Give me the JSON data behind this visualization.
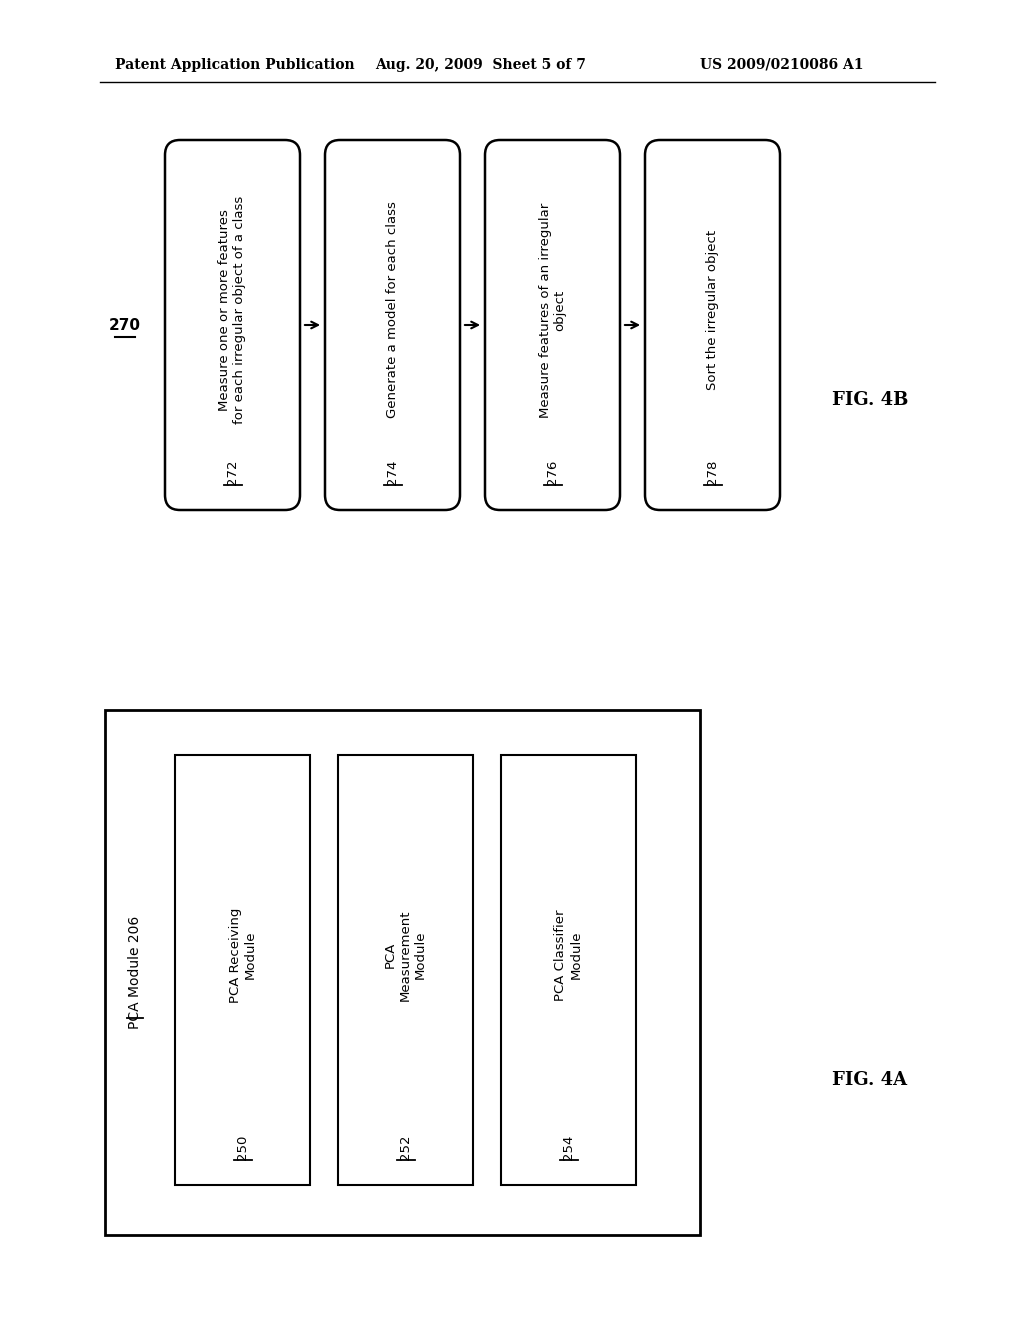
{
  "bg_color": "#ffffff",
  "header_left": "Patent Application Publication",
  "header_center": "Aug. 20, 2009  Sheet 5 of 7",
  "header_right": "US 2009/0210086 A1",
  "header_fontsize": 10,
  "fig4b": {
    "label": "270",
    "fig_label": "FIG. 4B",
    "boxes": [
      {
        "id": "272",
        "lines": [
          "Measure one or more features",
          "for each irregular object of a class"
        ]
      },
      {
        "id": "274",
        "lines": [
          "Generate a model for each class"
        ]
      },
      {
        "id": "276",
        "lines": [
          "Measure features of an irregular",
          "object"
        ]
      },
      {
        "id": "278",
        "lines": [
          "Sort the irregular object"
        ]
      }
    ]
  },
  "fig4a": {
    "outer_label_line1": "PCA Module",
    "outer_label_line2": "206",
    "fig_label": "FIG. 4A",
    "boxes": [
      {
        "id": "250",
        "lines": [
          "PCA Receiving",
          "Module"
        ]
      },
      {
        "id": "252",
        "lines": [
          "PCA",
          "Measurement",
          "Module"
        ]
      },
      {
        "id": "254",
        "lines": [
          "PCA Classifier",
          "Module"
        ]
      }
    ]
  }
}
